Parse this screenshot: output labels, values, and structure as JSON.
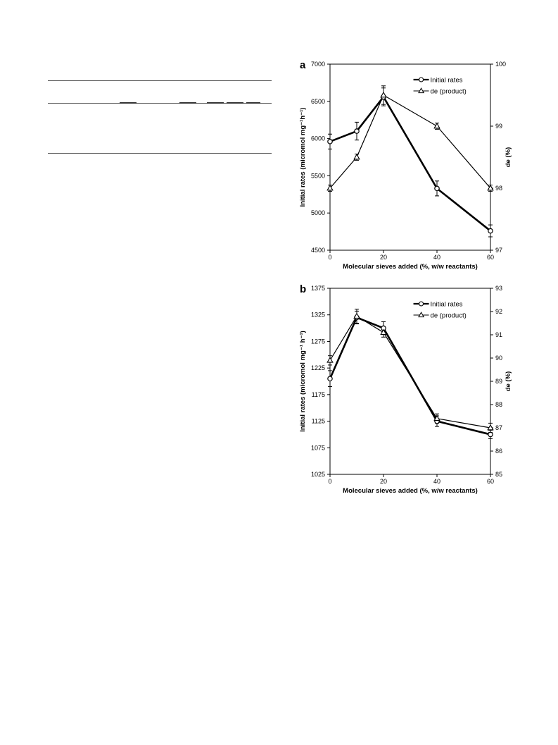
{
  "table_rules": {
    "title": "",
    "rows": []
  },
  "chart_data": [
    {
      "panel_label": "a",
      "type": "line",
      "x": [
        0,
        10,
        20,
        40,
        60
      ],
      "xlim": [
        0,
        60
      ],
      "xticks": [
        0,
        20,
        40,
        60
      ],
      "xlabel": "Molecular sieves added (%, w/w reactants)",
      "ylabel": "Initial rates (micromol mg⁻¹h⁻¹)",
      "ylim": [
        4500,
        7000
      ],
      "yticks": [
        4500,
        5000,
        5500,
        6000,
        6500,
        7000
      ],
      "y2label": "de (%)",
      "y2lim": [
        97,
        100
      ],
      "y2ticks": [
        97,
        98,
        99,
        100
      ],
      "legend_position": "top-right",
      "grid": false,
      "series": [
        {
          "name": "Initial rates",
          "axis": "left",
          "marker": "circle",
          "line": "thick",
          "values": [
            5960,
            6100,
            6560,
            5330,
            4760
          ],
          "errors": [
            100,
            120,
            120,
            100,
            80
          ]
        },
        {
          "name": "de (product)",
          "axis": "right",
          "marker": "triangle",
          "line": "thin",
          "values": [
            98.0,
            98.5,
            99.5,
            99.0,
            98.0
          ],
          "errors": [
            0.05,
            0.05,
            0.15,
            0.05,
            0.05
          ]
        }
      ]
    },
    {
      "panel_label": "b",
      "type": "line",
      "x": [
        0,
        10,
        20,
        40,
        60
      ],
      "xlim": [
        0,
        60
      ],
      "xticks": [
        0,
        20,
        40,
        60
      ],
      "xlabel": "Molecular sieves added (%, w/w reactants)",
      "ylabel": "Initial rates (micromol mg⁻¹ h⁻¹)",
      "ylim": [
        1025,
        1375
      ],
      "yticks": [
        1025,
        1075,
        1125,
        1175,
        1225,
        1275,
        1325,
        1375
      ],
      "y2label": "de (%)",
      "y2lim": [
        85,
        93
      ],
      "y2ticks": [
        85,
        86,
        87,
        88,
        89,
        90,
        91,
        92,
        93
      ],
      "legend_position": "top-right",
      "grid": false,
      "series": [
        {
          "name": "Initial rates",
          "axis": "left",
          "marker": "circle",
          "line": "thick",
          "values": [
            1205,
            1320,
            1300,
            1125,
            1100
          ],
          "errors": [
            15,
            12,
            12,
            10,
            8
          ]
        },
        {
          "name": "de (product)",
          "axis": "right",
          "marker": "triangle",
          "line": "thin",
          "values": [
            89.9,
            91.8,
            91.1,
            87.4,
            87.0
          ],
          "errors": [
            0.2,
            0.3,
            0.2,
            0.2,
            0.2
          ]
        }
      ]
    }
  ]
}
